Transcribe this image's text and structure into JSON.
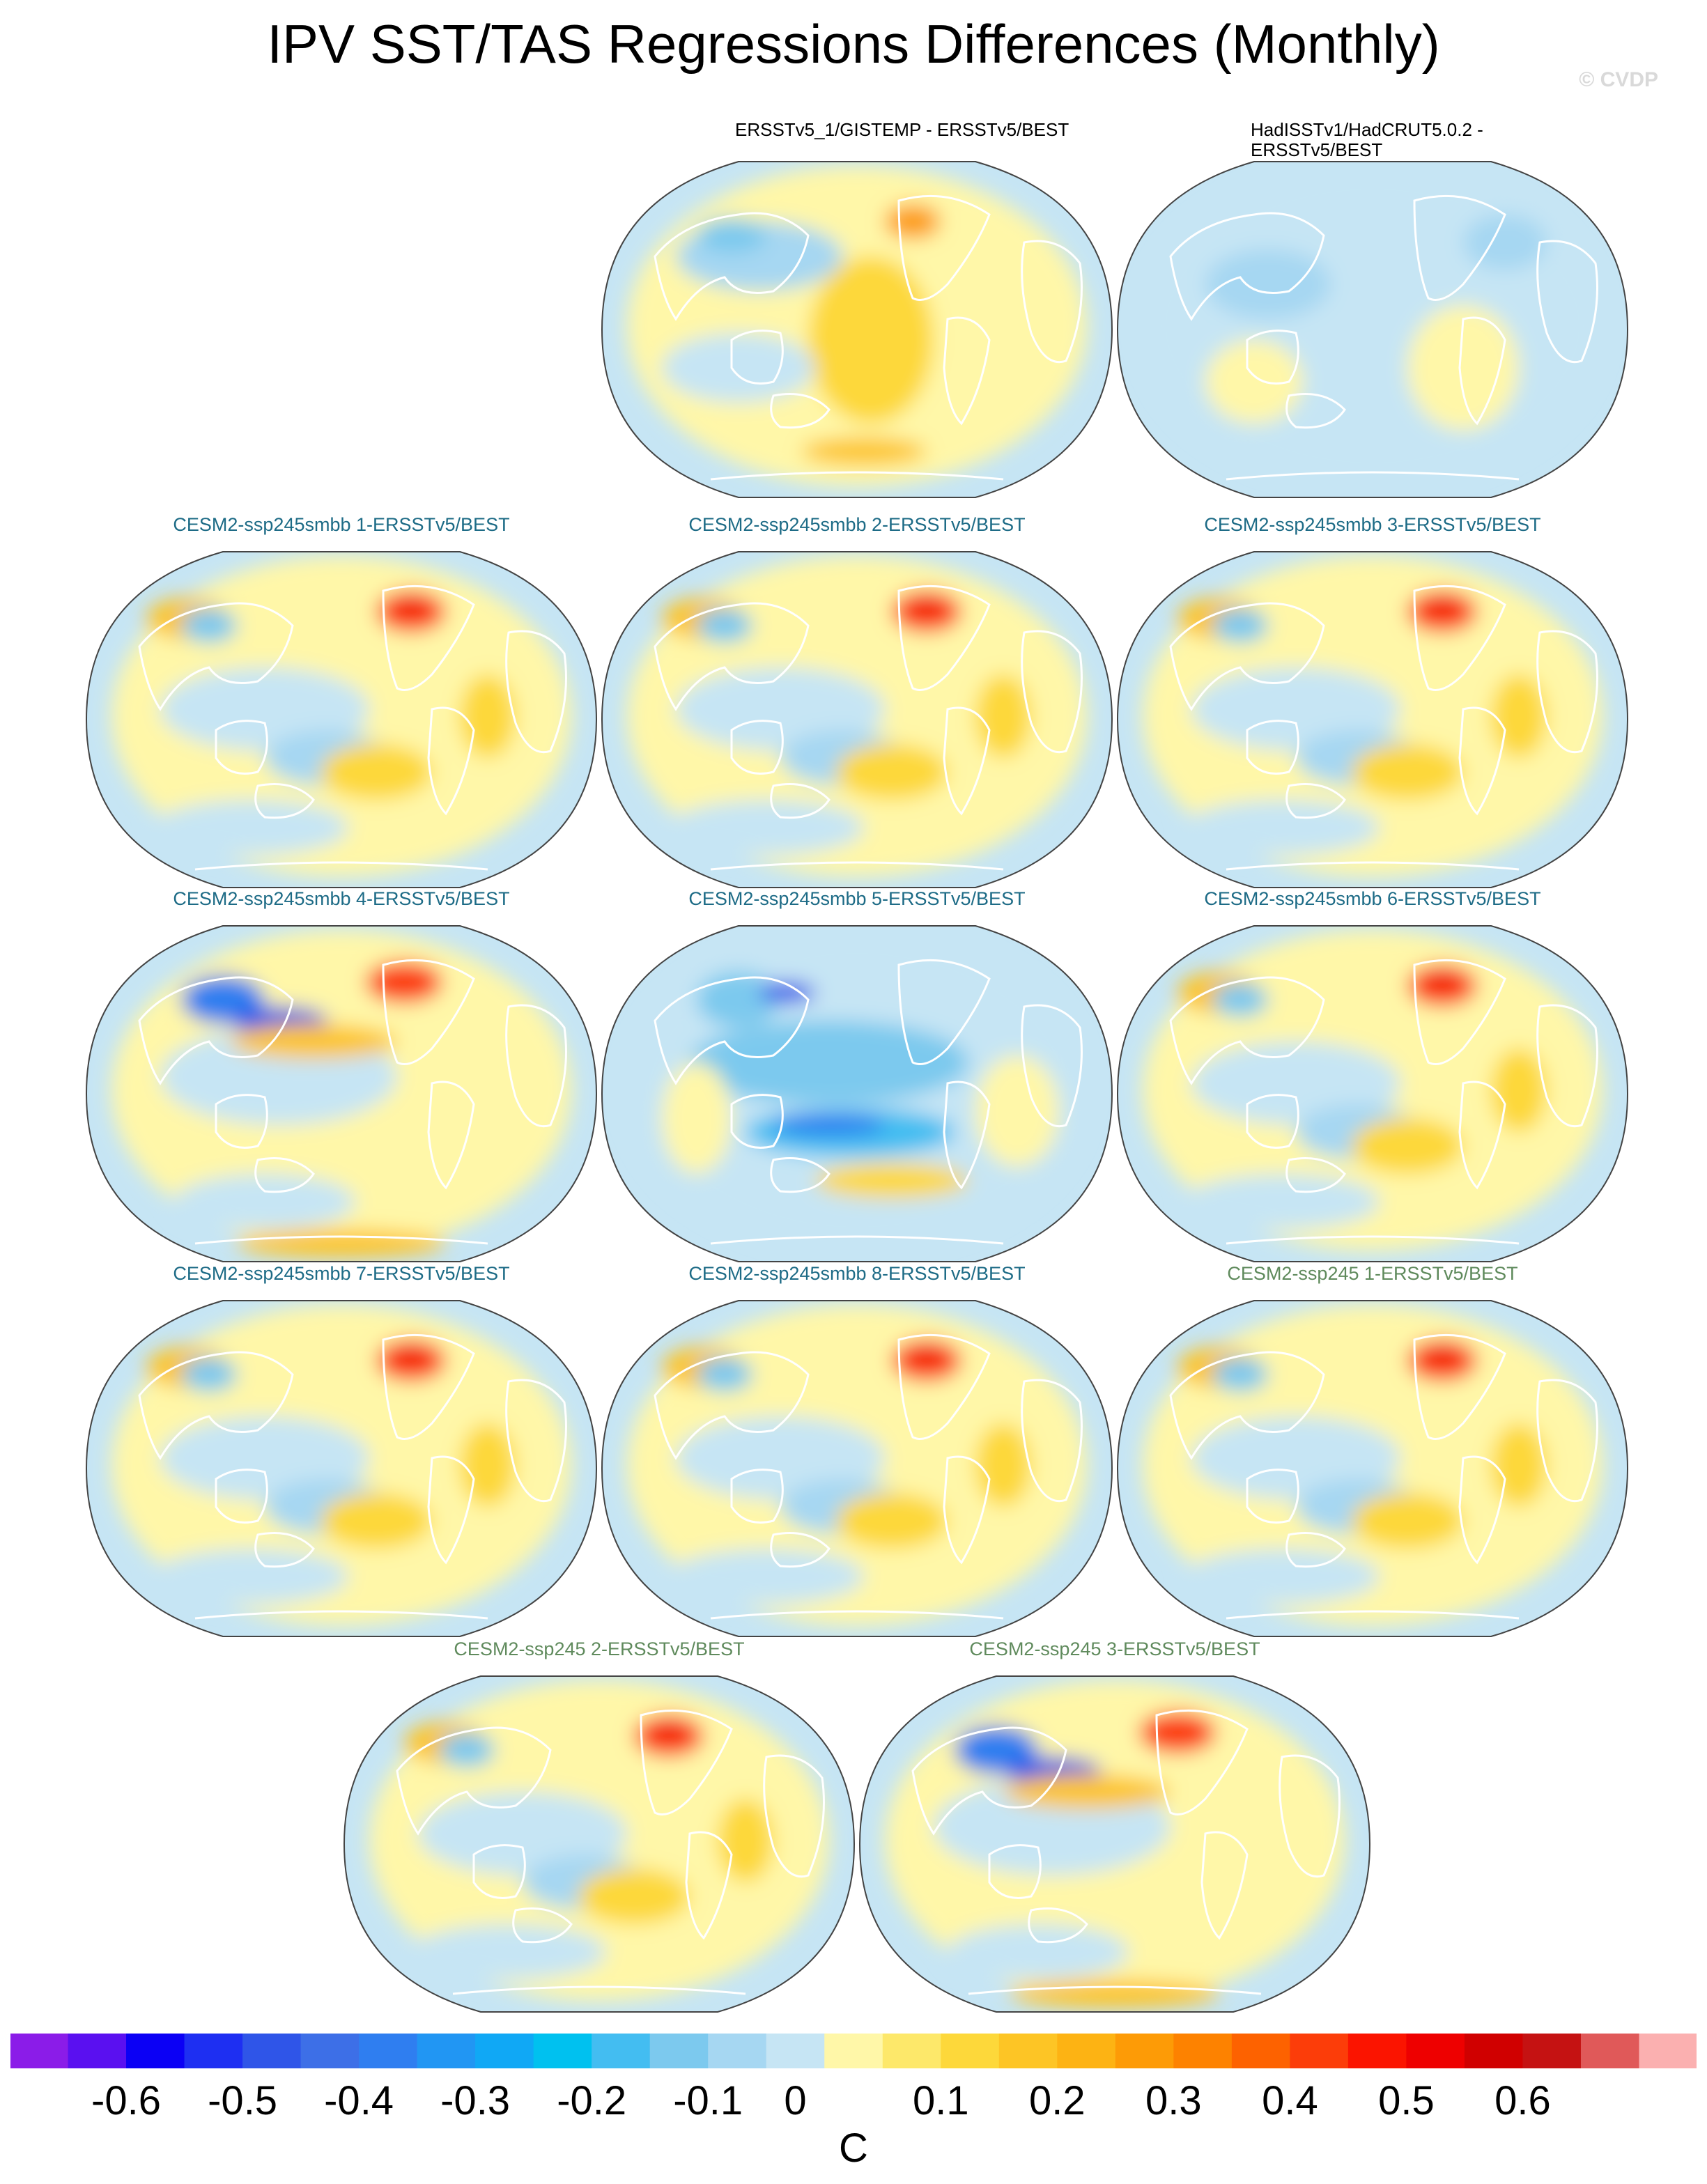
{
  "title": "IPV SST/TAS Regressions Differences (Monthly)",
  "credit": "© CVDP",
  "panels": [
    {
      "label": "ERSSTv5_1/GISTEMP - ERSSTv5/BEST",
      "kind": "obs",
      "pattern": "blue-north-pacific"
    },
    {
      "label": "HadISSTv1/HadCRUT5.0.2 - ERSSTv5/BEST",
      "kind": "obs",
      "pattern": "weak"
    },
    {
      "label": "CESM2-ssp245smbb 1-ERSSTv5/BEST",
      "kind": "smbb",
      "pattern": "warm-north"
    },
    {
      "label": "CESM2-ssp245smbb 2-ERSSTv5/BEST",
      "kind": "smbb",
      "pattern": "warm-north"
    },
    {
      "label": "CESM2-ssp245smbb 3-ERSSTv5/BEST",
      "kind": "smbb",
      "pattern": "warm-north"
    },
    {
      "label": "CESM2-ssp245smbb 4-ERSSTv5/BEST",
      "kind": "smbb",
      "pattern": "blue-kuroshio"
    },
    {
      "label": "CESM2-ssp245smbb 5-ERSSTv5/BEST",
      "kind": "smbb",
      "pattern": "blue-pacific"
    },
    {
      "label": "CESM2-ssp245smbb 6-ERSSTv5/BEST",
      "kind": "smbb",
      "pattern": "warm-north"
    },
    {
      "label": "CESM2-ssp245smbb 7-ERSSTv5/BEST",
      "kind": "smbb",
      "pattern": "warm-north"
    },
    {
      "label": "CESM2-ssp245smbb 8-ERSSTv5/BEST",
      "kind": "smbb",
      "pattern": "warm-north"
    },
    {
      "label": "CESM2-ssp245 1-ERSSTv5/BEST",
      "kind": "ssp",
      "pattern": "warm-north"
    },
    {
      "label": "CESM2-ssp245 2-ERSSTv5/BEST",
      "kind": "ssp",
      "pattern": "warm-north"
    },
    {
      "label": "CESM2-ssp245 3-ERSSTv5/BEST",
      "kind": "ssp",
      "pattern": "blue-kuroshio"
    }
  ],
  "colorbar": {
    "colors": [
      "#8b1ce8",
      "#5a10f0",
      "#0b00f5",
      "#1e2ff2",
      "#2f55e8",
      "#3d6fe7",
      "#2f7ef0",
      "#2196f3",
      "#10a8f5",
      "#00c1ef",
      "#43bdf1",
      "#7cc9ee",
      "#a6d7f2",
      "#c6e5f4",
      "#fff7a8",
      "#fde86a",
      "#fdd83a",
      "#fdc525",
      "#fdb313",
      "#fd9b06",
      "#fd8200",
      "#fd6200",
      "#fc3d09",
      "#fb1400",
      "#ee0000",
      "#d00000",
      "#c51212",
      "#e05959",
      "#fbb0b0"
    ],
    "tick_labels": [
      "-0.6",
      "-0.5",
      "-0.4",
      "-0.3",
      "-0.2",
      "-0.1",
      "0",
      "0.1",
      "0.2",
      "0.3",
      "0.4",
      "0.5",
      "0.6"
    ],
    "units": "C"
  }
}
